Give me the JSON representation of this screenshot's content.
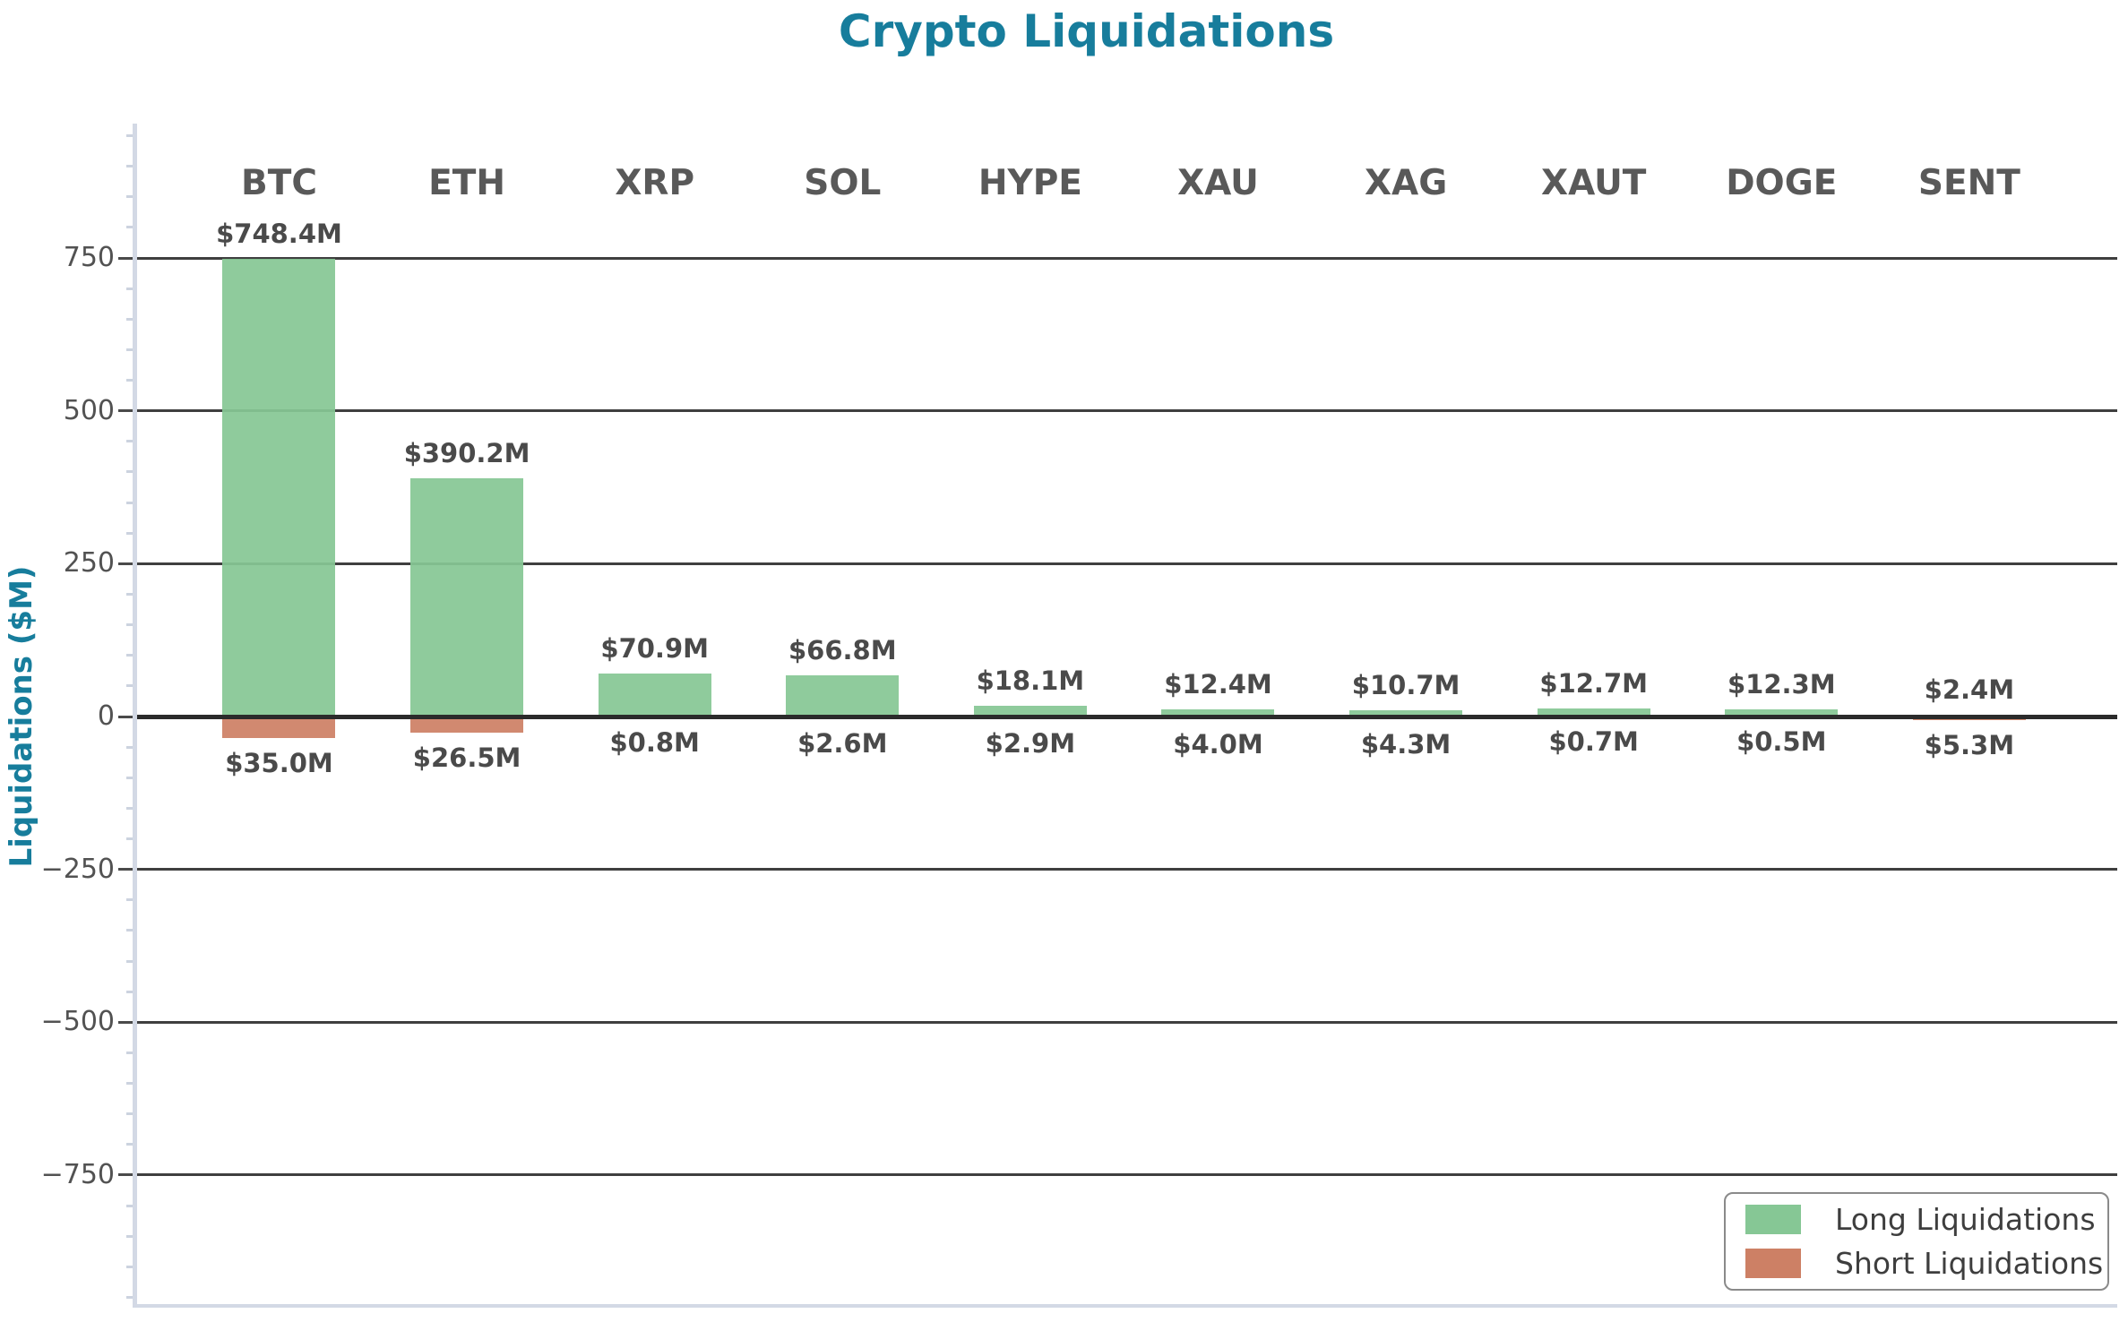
{
  "chart_data": {
    "type": "bar",
    "title": "Crypto Liquidations",
    "xlabel": "",
    "ylabel": "Liquidations ($M)",
    "categories": [
      "BTC",
      "ETH",
      "XRP",
      "SOL",
      "HYPE",
      "XAU",
      "XAG",
      "XAUT",
      "DOGE",
      "SENT"
    ],
    "series": [
      {
        "name": "Long Liquidations",
        "direction": "up",
        "color": "#86C795",
        "values": [
          748.4,
          390.2,
          70.9,
          66.8,
          18.1,
          12.4,
          10.7,
          12.7,
          12.3,
          2.4
        ],
        "labels": [
          "$748.4M",
          "$390.2M",
          "$70.9M",
          "$66.8M",
          "$18.1M",
          "$12.4M",
          "$10.7M",
          "$12.7M",
          "$12.3M",
          "$2.4M"
        ]
      },
      {
        "name": "Short Liquidations",
        "direction": "down",
        "color": "#CD8065",
        "values": [
          35.0,
          26.5,
          0.8,
          2.6,
          2.9,
          4.0,
          4.3,
          0.7,
          0.5,
          5.3
        ],
        "labels": [
          "$35.0M",
          "$26.5M",
          "$0.8M",
          "$2.6M",
          "$2.9M",
          "$4.0M",
          "$4.3M",
          "$0.7M",
          "$0.5M",
          "$5.3M"
        ]
      }
    ],
    "yticks": {
      "values": [
        750,
        500,
        250,
        0,
        -250,
        -500,
        -750
      ],
      "labels": [
        "750",
        "500",
        "250",
        "0",
        "−250",
        "−500",
        "−750"
      ]
    },
    "ylim": [
      -965,
      965
    ],
    "minor_tick_step": 50,
    "grid": "horizontal-major",
    "legend_position": "lower right",
    "colors": {
      "title": "#177D9C",
      "axis_label": "#177D9C",
      "tick_label": "#525252",
      "category_label": "#595959",
      "value_label": "#4A4A4A",
      "gridline": "#3F3F3F",
      "zero_line": "#2B2B2B",
      "spine": "#D3D9E5",
      "minor_tick": "#CCD3DF",
      "major_tick": "#4A4A4A",
      "legend_text": "#3E3E3E",
      "legend_border": "#8A8A8A",
      "background": "#FFFFFF"
    }
  }
}
